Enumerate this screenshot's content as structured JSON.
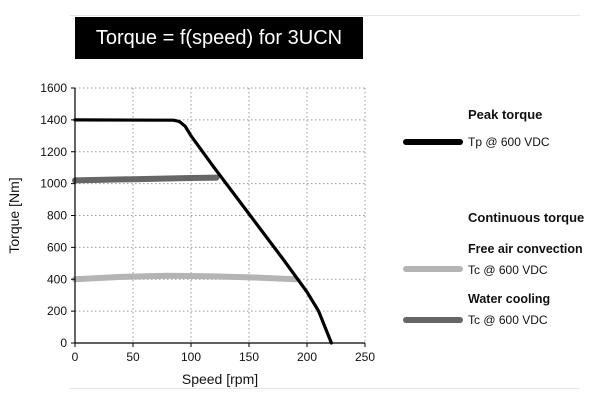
{
  "chart_data": {
    "type": "line",
    "title": "Torque = f(speed) for 3UCN",
    "xlabel": "Speed [rpm]",
    "ylabel": "Torque [Nm]",
    "xlim": [
      0,
      250
    ],
    "ylim": [
      0,
      1600
    ],
    "xticks": [
      0,
      50,
      100,
      150,
      200,
      250
    ],
    "yticks": [
      0,
      200,
      400,
      600,
      800,
      1000,
      1200,
      1400,
      1600
    ],
    "grid": "dotted",
    "legend_placement": "right",
    "series": [
      {
        "name": "Tp @ 600 VDC",
        "color": "#000000",
        "points": [
          [
            0,
            1400
          ],
          [
            85,
            1398
          ],
          [
            90,
            1390
          ],
          [
            95,
            1360
          ],
          [
            100,
            1300
          ],
          [
            120,
            1100
          ],
          [
            150,
            810
          ],
          [
            180,
            520
          ],
          [
            200,
            320
          ],
          [
            210,
            200
          ],
          [
            221,
            0
          ]
        ]
      },
      {
        "name": "Tc @ 600 VDC",
        "color": "#b4b4b4",
        "points": [
          [
            0,
            400
          ],
          [
            40,
            415
          ],
          [
            80,
            422
          ],
          [
            120,
            418
          ],
          [
            160,
            410
          ],
          [
            190,
            400
          ]
        ]
      },
      {
        "name": "Tc @ 600 VDC",
        "color": "#666666",
        "points": [
          [
            0,
            1020
          ],
          [
            50,
            1028
          ],
          [
            100,
            1035
          ],
          [
            122,
            1038
          ]
        ]
      }
    ]
  },
  "legend": {
    "peak_heading": "Peak torque",
    "peak_label": "Tp @ 600 VDC",
    "cont_heading": "Continuous torque",
    "free_air_heading": "Free air convection",
    "free_air_label": "Tc @ 600 VDC",
    "water_heading": "Water cooling",
    "water_label": "Tc @ 600 VDC"
  }
}
